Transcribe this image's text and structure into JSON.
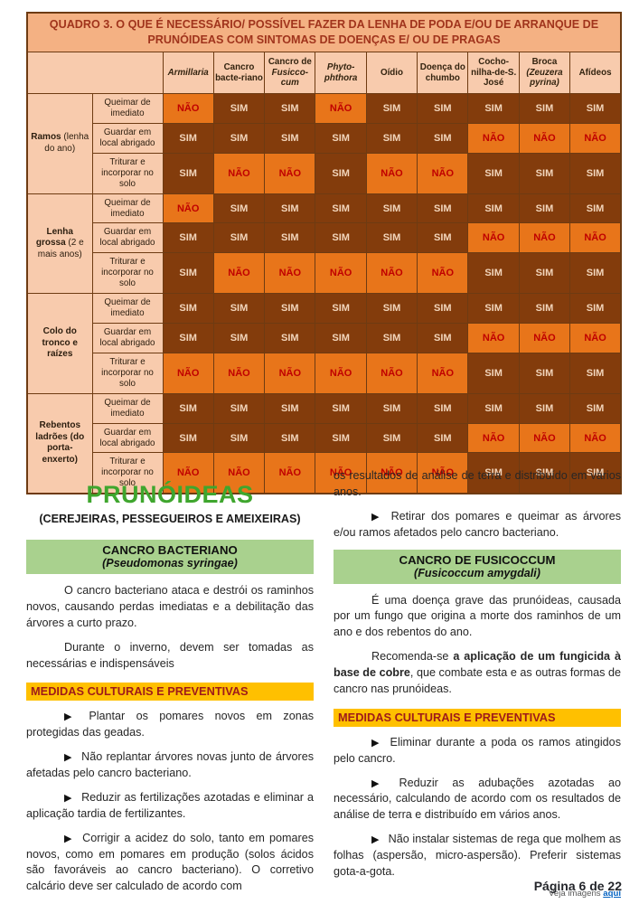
{
  "table": {
    "title": "QUADRO 3. O QUE É NECESSÁRIO/ POSSÍVEL FAZER DA LENHA DE PODA E/OU DE ARRANQUE DE PRUNÓIDEAS COM SINTOMAS DE DOENÇAS E/ OU DE PRAGAS",
    "columns": [
      {
        "text": "",
        "italic_text": "Armillaria"
      },
      {
        "text": "Cancro bacte-riano",
        "italic_text": ""
      },
      {
        "text": "Cancro de ",
        "italic_text": "Fusicco-cum"
      },
      {
        "text": "",
        "italic_text": "Phyto-phthora"
      },
      {
        "text": "Oídio",
        "italic_text": ""
      },
      {
        "text": "Doença do chumbo",
        "italic_text": ""
      },
      {
        "text": "Cocho-nilha-de-S. José",
        "italic_text": ""
      },
      {
        "text": "Broca ",
        "italic_text": "(Zeuzera pyrina)"
      },
      {
        "text": "Afídeos",
        "italic_text": ""
      }
    ],
    "row_groups": [
      {
        "label": "Ramos",
        "label_note": "(lenha do ano)",
        "rows": [
          {
            "action": "Queimar de imediato",
            "values": [
              "NÃO",
              "SIM",
              "SIM",
              "NÃO",
              "SIM",
              "SIM",
              "SIM",
              "SIM",
              "SIM"
            ]
          },
          {
            "action": "Guardar em local abrigado",
            "values": [
              "SIM",
              "SIM",
              "SIM",
              "SIM",
              "SIM",
              "SIM",
              "NÃO",
              "NÃO",
              "NÃO"
            ]
          },
          {
            "action": "Triturar e incorporar no solo",
            "values": [
              "SIM",
              "NÃO",
              "NÃO",
              "SIM",
              "NÃO",
              "NÃO",
              "SIM",
              "SIM",
              "SIM"
            ]
          }
        ]
      },
      {
        "label": "Lenha grossa",
        "label_note": "(2 e mais anos)",
        "rows": [
          {
            "action": "Queimar de imediato",
            "values": [
              "NÃO",
              "SIM",
              "SIM",
              "SIM",
              "SIM",
              "SIM",
              "SIM",
              "SIM",
              "SIM"
            ]
          },
          {
            "action": "Guardar em local abrigado",
            "values": [
              "SIM",
              "SIM",
              "SIM",
              "SIM",
              "SIM",
              "SIM",
              "NÃO",
              "NÃO",
              "NÃO"
            ]
          },
          {
            "action": "Triturar e incorporar no solo",
            "values": [
              "SIM",
              "NÃO",
              "NÃO",
              "NÃO",
              "NÃO",
              "NÃO",
              "SIM",
              "SIM",
              "SIM"
            ]
          }
        ]
      },
      {
        "label": "Colo do tronco e raízes",
        "label_note": "",
        "rows": [
          {
            "action": "Queimar de imediato",
            "values": [
              "SIM",
              "SIM",
              "SIM",
              "SIM",
              "SIM",
              "SIM",
              "SIM",
              "SIM",
              "SIM"
            ]
          },
          {
            "action": "Guardar em local abrigado",
            "values": [
              "SIM",
              "SIM",
              "SIM",
              "SIM",
              "SIM",
              "SIM",
              "NÃO",
              "NÃO",
              "NÃO"
            ]
          },
          {
            "action": "Triturar e incorporar no solo",
            "values": [
              "NÃO",
              "NÃO",
              "NÃO",
              "NÃO",
              "NÃO",
              "NÃO",
              "SIM",
              "SIM",
              "SIM"
            ]
          }
        ]
      },
      {
        "label": "Rebentos ladrões (do porta-enxerto)",
        "label_note": "",
        "rows": [
          {
            "action": "Queimar de imediato",
            "values": [
              "SIM",
              "SIM",
              "SIM",
              "SIM",
              "SIM",
              "SIM",
              "SIM",
              "SIM",
              "SIM"
            ]
          },
          {
            "action": "Guardar em local abrigado",
            "values": [
              "SIM",
              "SIM",
              "SIM",
              "SIM",
              "SIM",
              "SIM",
              "NÃO",
              "NÃO",
              "NÃO"
            ]
          },
          {
            "action": "Triturar e incorporar no solo",
            "values": [
              "NÃO",
              "NÃO",
              "NÃO",
              "NÃO",
              "NÃO",
              "NÃO",
              "SIM",
              "SIM",
              "SIM"
            ]
          }
        ]
      }
    ]
  },
  "article": {
    "bullet_glyph": "▶",
    "title": "PRUNÓIDEAS",
    "subtitle": "(CEREJEIRAS, PESSEGUEIROS E AMEIXEIRAS)",
    "left": {
      "section_heading": "CANCRO BACTERIANO",
      "section_subheading": "(Pseudomonas syringae)",
      "para1": "O cancro bacteriano ataca e destrói os raminhos novos, causando perdas imediatas e a debilitação das árvores a curto prazo.",
      "para2": "Durante o inverno, devem ser tomadas as necessárias e indispensáveis",
      "measures_heading": "MEDIDAS CULTURAIS E PREVENTIVAS",
      "bullets": [
        "Plantar os pomares novos em zonas protegidas das geadas.",
        "Não replantar árvores novas junto de árvores afetadas pelo cancro bacteriano.",
        "Reduzir as fertilizações azotadas e eliminar a aplicação tardia de fertilizantes.",
        "Corrigir a acidez do solo, tanto em pomares novos, como em pomares em produção (solos ácidos são favoráveis ao cancro bacteriano). O corretivo calcário deve ser calculado de acordo com"
      ]
    },
    "right": {
      "continuation": "os resultados de análise de terra e distribuído em vários anos.",
      "continuation_bullet": "Retirar dos pomares e queimar as árvores e/ou ramos afetados pelo cancro bacteriano.",
      "section_heading": "CANCRO DE FUSICOCCUM",
      "section_subheading": "(Fusicoccum amygdali)",
      "para1": "É uma doença grave das prunóideas, causada por um fungo que origina a morte dos raminhos de um ano e dos rebentos do ano.",
      "para2_prefix": "Recomenda-se ",
      "para2_bold": "a aplicação de um fungicida à base de cobre",
      "para2_suffix": ", que combate esta e as outras formas de cancro nas prunóideas.",
      "measures_heading": "MEDIDAS CULTURAIS E PREVENTIVAS",
      "bullets": [
        "Eliminar durante a poda os ramos atingidos pelo cancro.",
        "Reduzir as adubações azotadas ao necessário, calculando de acordo com os resultados de análise de terra e distribuído em vários anos.",
        "Não instalar sistemas de rega que molhem as folhas (aspersão, micro-aspersão). Preferir sistemas gota-a-gota."
      ],
      "see_images_text": "Veja imagens ",
      "see_images_link": "aqui"
    }
  },
  "footer": {
    "page_label": "Página 6 de 22"
  },
  "colors": {
    "table_title_bg": "#F4B183",
    "table_title_text": "#A0341C",
    "header_bg": "#F8CBAD",
    "sim_bg": "#833C0C",
    "sim_text": "#F3D6BC",
    "nao_bg": "#E8751A",
    "nao_text": "#C00000",
    "grid_border": "#6E3B12",
    "accent_green": "#3FA62E",
    "green_banner_bg": "#A9D18E",
    "yellow_banner_bg": "#FFC000",
    "yellow_banner_text": "#9E1A1A",
    "link_blue": "#0563C1"
  }
}
